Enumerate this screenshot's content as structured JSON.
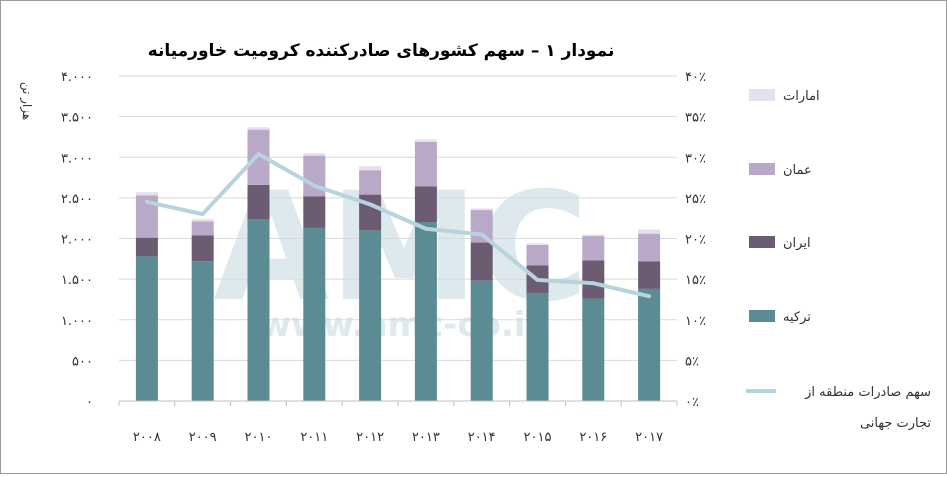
{
  "chart_data": {
    "type": "bar",
    "title": "نمودار ۱ – سهم کشورهای صادرکننده کرومیت خاورمیانه",
    "ylabel": "هزار تن",
    "categories": [
      "۲۰۰۸",
      "۲۰۰۹",
      "۲۰۱۰",
      "۲۰۱۱",
      "۲۰۱۲",
      "۲۰۱۳",
      "۲۰۱۴",
      "۲۰۱۵",
      "۲۰۱۶",
      "۲۰۱۷"
    ],
    "ylim": [
      0,
      4000
    ],
    "y2lim": [
      0,
      40
    ],
    "y_ticks": [
      0,
      500,
      1000,
      1500,
      2000,
      2500,
      3000,
      3500,
      4000
    ],
    "y_tick_labels": [
      "۰",
      "۵۰۰",
      "۱.۰۰۰",
      "۱.۵۰۰",
      "۲.۰۰۰",
      "۲.۵۰۰",
      "۳.۰۰۰",
      "۳.۵۰۰",
      "۴.۰۰۰"
    ],
    "y2_ticks": [
      0,
      5,
      10,
      15,
      20,
      25,
      30,
      35,
      40
    ],
    "y2_tick_labels": [
      "۰٪",
      "۵٪",
      "۱۰٪",
      "۱۵٪",
      "۲۰٪",
      "۲۵٪",
      "۳۰٪",
      "۳۵٪",
      "۴۰٪"
    ],
    "grid": true,
    "stacked": true,
    "legend_position": "right",
    "series": [
      {
        "name": "ترکیه",
        "kind": "bar",
        "color": "#5b8b93",
        "values": [
          1780,
          1720,
          2240,
          2130,
          2100,
          2200,
          1480,
          1330,
          1260,
          1380
        ]
      },
      {
        "name": "ایران",
        "kind": "bar",
        "color": "#6b5c72",
        "values": [
          230,
          320,
          420,
          390,
          440,
          440,
          470,
          340,
          470,
          340
        ]
      },
      {
        "name": "عمان",
        "kind": "bar",
        "color": "#b9a8c7",
        "values": [
          520,
          170,
          680,
          500,
          300,
          550,
          400,
          250,
          300,
          340
        ]
      },
      {
        "name": "امارات",
        "kind": "bar",
        "color": "#e6dfed",
        "values": [
          40,
          30,
          30,
          30,
          50,
          30,
          20,
          20,
          20,
          50
        ]
      },
      {
        "name": "سهم صادرات منطقه از تجارت جهانی",
        "kind": "line",
        "axis": "right",
        "color": "#b7d4de",
        "values": [
          24.5,
          23.0,
          30.4,
          26.5,
          24.2,
          21.2,
          20.5,
          14.9,
          14.5,
          12.9
        ]
      }
    ],
    "watermark": {
      "big": "AMC",
      "small": "www.amc-co.ir"
    }
  }
}
